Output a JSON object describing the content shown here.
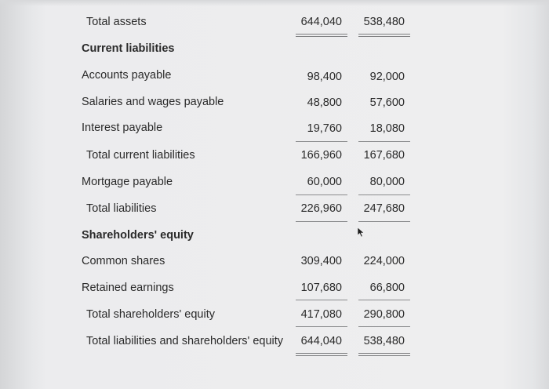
{
  "statement": {
    "col_headers": [],
    "rows": [
      {
        "label": "Total assets",
        "v1": "644,040",
        "v2": "538,480"
      },
      {
        "label": "Current liabilities"
      },
      {
        "label": "Accounts payable",
        "v1": "98,400",
        "v2": "92,000"
      },
      {
        "label": "Salaries and wages payable",
        "v1": "48,800",
        "v2": "57,600"
      },
      {
        "label": "Interest payable",
        "v1": "19,760",
        "v2": "18,080"
      },
      {
        "label": "Total current liabilities",
        "v1": "166,960",
        "v2": "167,680"
      },
      {
        "label": "Mortgage payable",
        "v1": "60,000",
        "v2": "80,000"
      },
      {
        "label": "Total liabilities",
        "v1": "226,960",
        "v2": "247,680"
      },
      {
        "label": "Shareholders' equity"
      },
      {
        "label": "Common shares",
        "v1": "309,400",
        "v2": "224,000"
      },
      {
        "label": "Retained earnings",
        "v1": "107,680",
        "v2": "66,800"
      },
      {
        "label": "Total shareholders' equity",
        "v1": "417,080",
        "v2": "290,800"
      },
      {
        "label": "Total liabilities and shareholders' equity",
        "v1": "644,040",
        "v2": "538,480"
      }
    ]
  },
  "cursor_icon": "mouse-pointer-icon"
}
